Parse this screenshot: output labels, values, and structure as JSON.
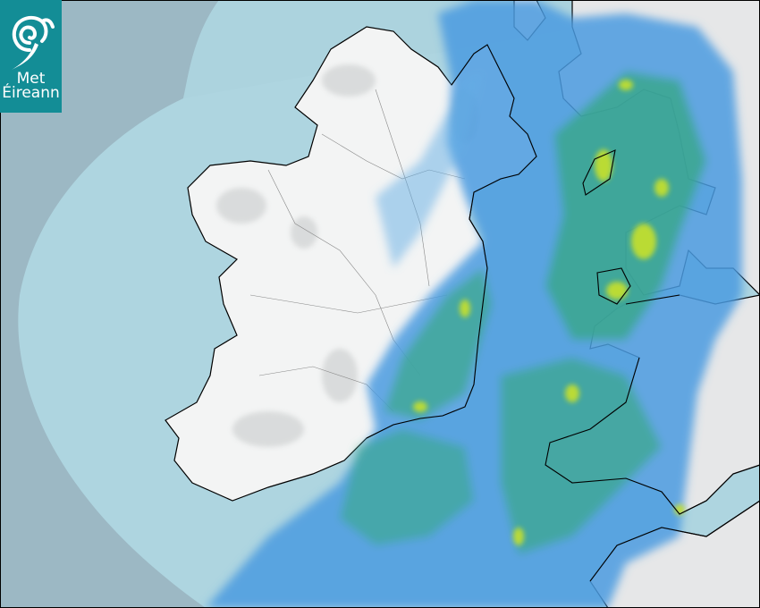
{
  "logo": {
    "line1": "Met",
    "line2": "Éireann",
    "brand_color": "#138d96"
  },
  "map": {
    "type": "weather radar composite",
    "colors": {
      "outside_coverage": "#9cb8c4",
      "sea": "#aed5e0",
      "land": "#f2f3f3",
      "rain_light": "#3a8fd6",
      "rain_moderate": "#35a98a",
      "rain_heavy": "#c6e02a",
      "coastline": "#000000"
    }
  }
}
